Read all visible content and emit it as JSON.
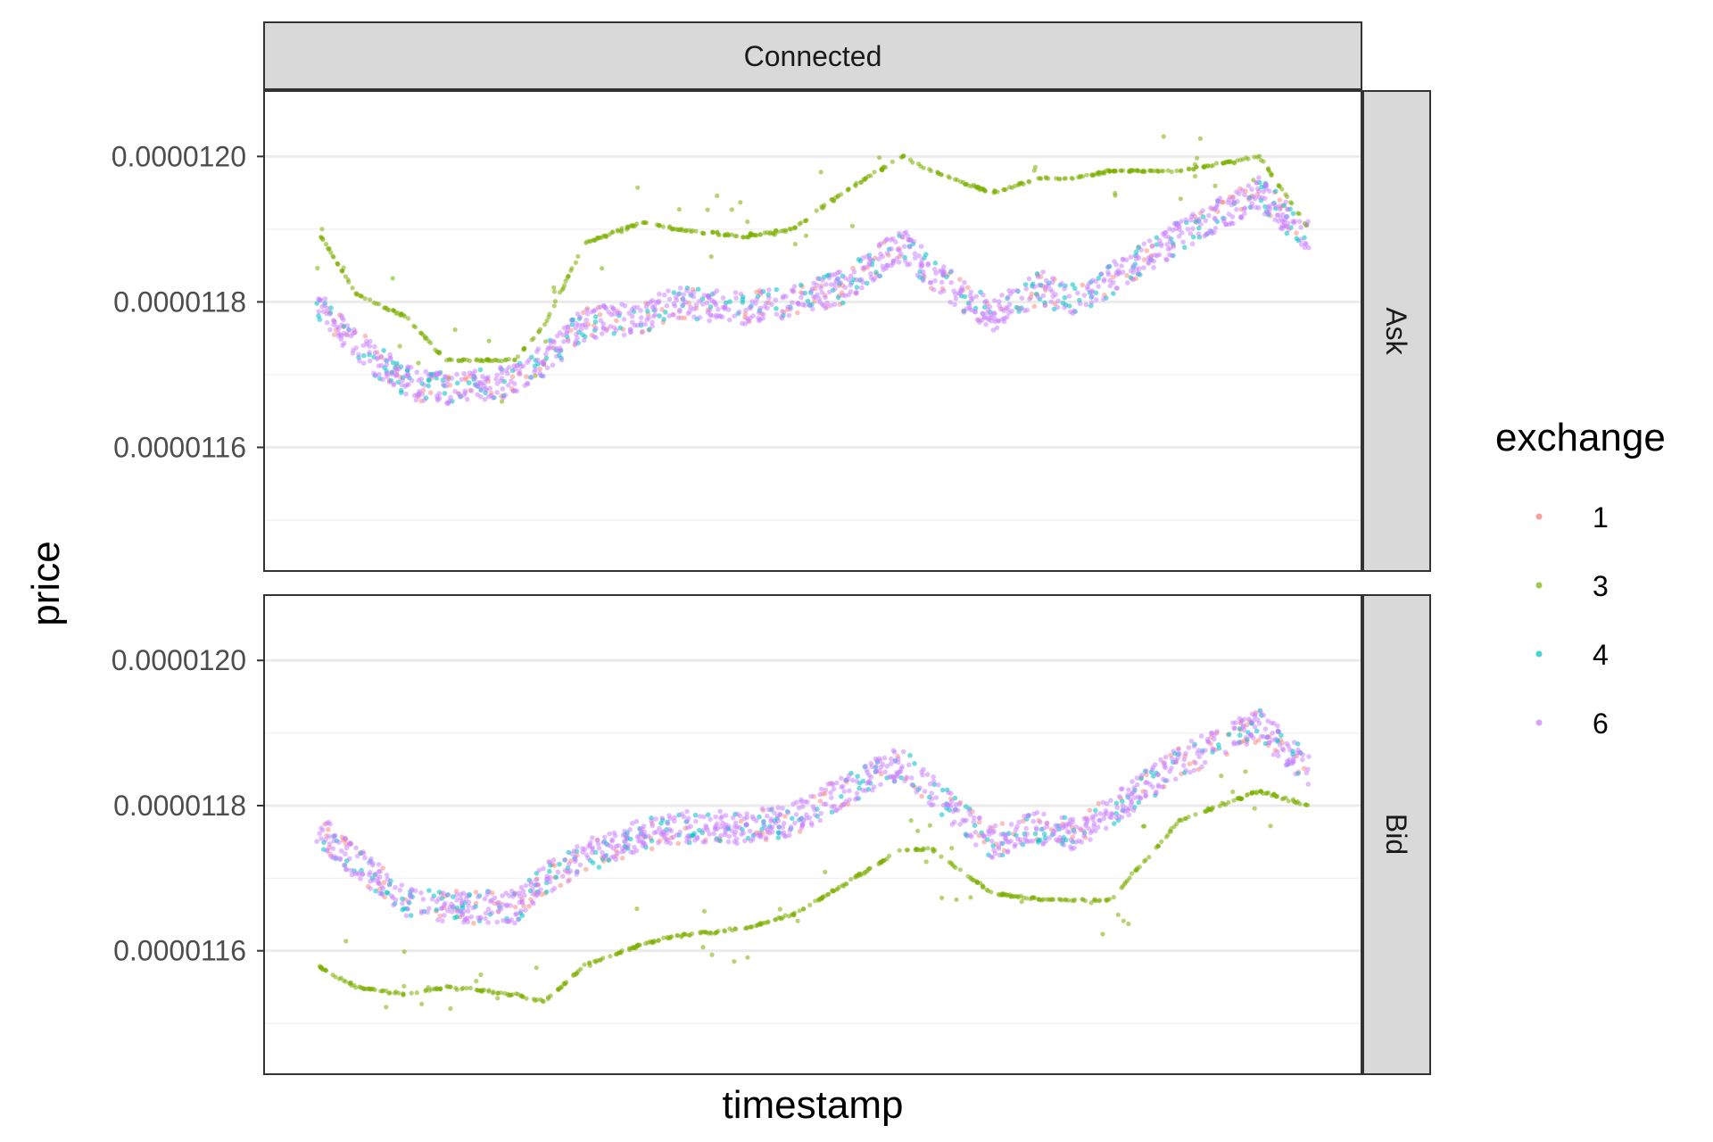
{
  "chart_data": {
    "type": "scatter",
    "facet_col_label": "Connected",
    "facet_rows": [
      "Ask",
      "Bid"
    ],
    "xlabel": "timestamp",
    "ylabel": "price",
    "x_tick_labels": [],
    "ylim": [
      1.143e-05,
      1.209e-05
    ],
    "y_ticks": [
      1.16e-05,
      1.18e-05,
      1.2e-05
    ],
    "y_tick_labels": [
      "0.0000116",
      "0.0000118",
      "0.0000120"
    ],
    "grid": true,
    "legend": {
      "title": "exchange",
      "position": "right",
      "entries": [
        {
          "name": "1",
          "color": "#F8766D"
        },
        {
          "name": "3",
          "color": "#7CAE00"
        },
        {
          "name": "4",
          "color": "#00BFC4"
        },
        {
          "name": "6",
          "color": "#C77CFF"
        }
      ]
    },
    "panels": [
      {
        "facet": "Ask",
        "series": [
          {
            "name": "6",
            "approx_trend": [
              [
                0.0,
                1.18e-05
              ],
              [
                0.04,
                1.174e-05
              ],
              [
                0.09,
                1.169e-05
              ],
              [
                0.13,
                1.168e-05
              ],
              [
                0.2,
                1.169e-05
              ],
              [
                0.23,
                1.172e-05
              ],
              [
                0.27,
                1.177e-05
              ],
              [
                0.33,
                1.178e-05
              ],
              [
                0.36,
                1.18e-05
              ],
              [
                0.43,
                1.179e-05
              ],
              [
                0.48,
                1.18e-05
              ],
              [
                0.53,
                1.182e-05
              ],
              [
                0.59,
                1.188e-05
              ],
              [
                0.62,
                1.184e-05
              ],
              [
                0.68,
                1.178e-05
              ],
              [
                0.73,
                1.182e-05
              ],
              [
                0.76,
                1.18e-05
              ],
              [
                0.8,
                1.183e-05
              ],
              [
                0.87,
                1.189e-05
              ],
              [
                0.95,
                1.195e-05
              ],
              [
                1.0,
                1.189e-05
              ]
            ]
          },
          {
            "name": "3",
            "approx_trend": [
              [
                0.0,
                1.19e-05
              ],
              [
                0.04,
                1.181e-05
              ],
              [
                0.09,
                1.178e-05
              ],
              [
                0.13,
                1.172e-05
              ],
              [
                0.2,
                1.172e-05
              ],
              [
                0.23,
                1.177e-05
              ],
              [
                0.27,
                1.188e-05
              ],
              [
                0.33,
                1.191e-05
              ],
              [
                0.36,
                1.19e-05
              ],
              [
                0.43,
                1.189e-05
              ],
              [
                0.48,
                1.19e-05
              ],
              [
                0.53,
                1.195e-05
              ],
              [
                0.59,
                1.2e-05
              ],
              [
                0.62,
                1.198e-05
              ],
              [
                0.68,
                1.195e-05
              ],
              [
                0.73,
                1.197e-05
              ],
              [
                0.76,
                1.197e-05
              ],
              [
                0.8,
                1.198e-05
              ],
              [
                0.87,
                1.198e-05
              ],
              [
                0.95,
                1.2e-05
              ],
              [
                1.0,
                1.19e-05
              ]
            ]
          }
        ]
      },
      {
        "facet": "Bid",
        "series": [
          {
            "name": "6",
            "approx_trend": [
              [
                0.0,
                1.177e-05
              ],
              [
                0.04,
                1.172e-05
              ],
              [
                0.09,
                1.167e-05
              ],
              [
                0.13,
                1.166e-05
              ],
              [
                0.2,
                1.166e-05
              ],
              [
                0.23,
                1.17e-05
              ],
              [
                0.27,
                1.173e-05
              ],
              [
                0.33,
                1.176e-05
              ],
              [
                0.36,
                1.177e-05
              ],
              [
                0.43,
                1.177e-05
              ],
              [
                0.48,
                1.178e-05
              ],
              [
                0.53,
                1.182e-05
              ],
              [
                0.59,
                1.186e-05
              ],
              [
                0.62,
                1.182e-05
              ],
              [
                0.68,
                1.175e-05
              ],
              [
                0.73,
                1.177e-05
              ],
              [
                0.76,
                1.176e-05
              ],
              [
                0.8,
                1.179e-05
              ],
              [
                0.87,
                1.186e-05
              ],
              [
                0.95,
                1.191e-05
              ],
              [
                1.0,
                1.185e-05
              ]
            ]
          },
          {
            "name": "3",
            "approx_trend": [
              [
                0.0,
                1.158e-05
              ],
              [
                0.04,
                1.155e-05
              ],
              [
                0.09,
                1.154e-05
              ],
              [
                0.13,
                1.155e-05
              ],
              [
                0.2,
                1.154e-05
              ],
              [
                0.23,
                1.153e-05
              ],
              [
                0.27,
                1.158e-05
              ],
              [
                0.33,
                1.161e-05
              ],
              [
                0.36,
                1.162e-05
              ],
              [
                0.43,
                1.163e-05
              ],
              [
                0.48,
                1.165e-05
              ],
              [
                0.53,
                1.169e-05
              ],
              [
                0.59,
                1.174e-05
              ],
              [
                0.62,
                1.174e-05
              ],
              [
                0.68,
                1.168e-05
              ],
              [
                0.73,
                1.167e-05
              ],
              [
                0.76,
                1.167e-05
              ],
              [
                0.8,
                1.167e-05
              ],
              [
                0.87,
                1.178e-05
              ],
              [
                0.95,
                1.182e-05
              ],
              [
                1.0,
                1.18e-05
              ]
            ]
          }
        ]
      }
    ]
  }
}
